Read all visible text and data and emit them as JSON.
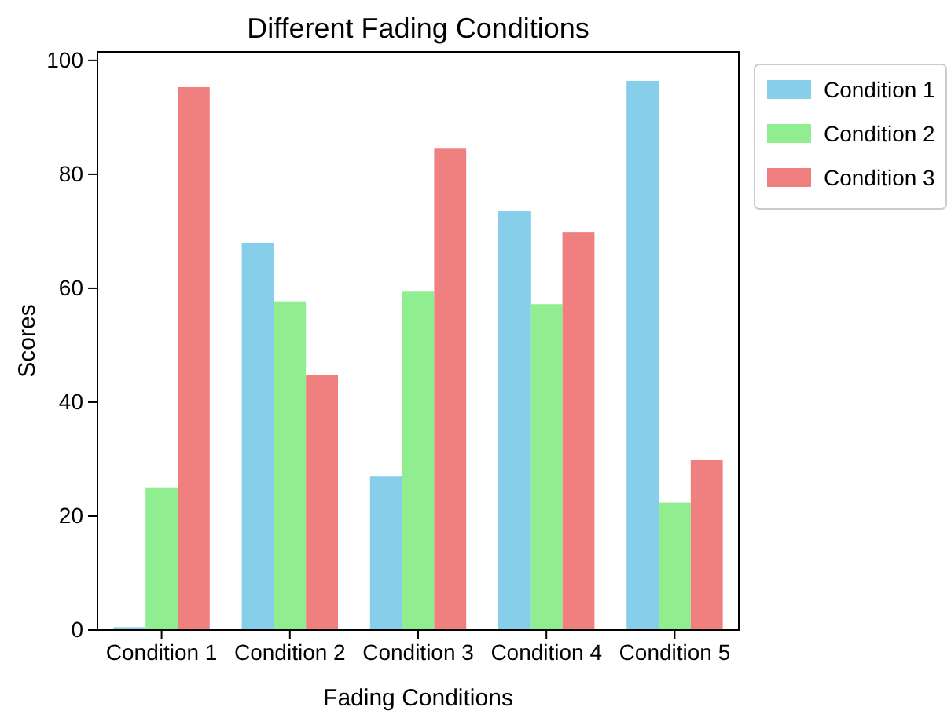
{
  "chart_data": {
    "type": "bar",
    "title": "Different Fading Conditions",
    "xlabel": "Fading Conditions",
    "ylabel": "Scores",
    "categories": [
      "Condition 1",
      "Condition 2",
      "Condition 3",
      "Condition 4",
      "Condition 5"
    ],
    "series": [
      {
        "name": "Condition 1",
        "color": "#87ceeb",
        "values": [
          0.5,
          68,
          27,
          73.5,
          96.4
        ]
      },
      {
        "name": "Condition 2",
        "color": "#90ee90",
        "values": [
          25,
          57.7,
          59.4,
          57.2,
          22.4
        ]
      },
      {
        "name": "Condition 3",
        "color": "#f08080",
        "values": [
          95.3,
          44.8,
          84.5,
          69.9,
          29.8
        ]
      }
    ],
    "ylim": [
      0,
      101.5
    ],
    "yticks": [
      0,
      20,
      40,
      60,
      80,
      100
    ],
    "legend": "right"
  }
}
